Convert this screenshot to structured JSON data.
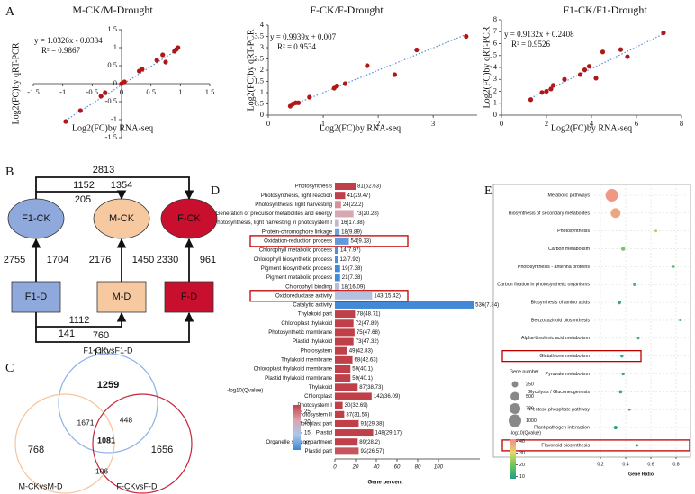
{
  "panel_labels": [
    "A",
    "B",
    "C",
    "D",
    "E"
  ],
  "chart_data": [
    {
      "type": "scatter",
      "title": "M-CK/M-Drought",
      "x_label": "Log2(FC)by RNA-seq",
      "y_label": "Log2(FC)by qRT-PCR",
      "equation": "y = 1.0326x - 0.0384",
      "r_squared": "R² = 0.9867",
      "trendline": {
        "slope": 1.0326,
        "intercept": -0.0384,
        "color": "#5b8bd6"
      },
      "color": "#b01818",
      "axes_cross_at_origin": true,
      "x": [
        -0.95,
        -0.7,
        -0.35,
        -0.28,
        0.0,
        0.05,
        0.3,
        0.35,
        0.6,
        0.7,
        0.75,
        0.9,
        0.93,
        0.96
      ],
      "y": [
        -1.05,
        -0.75,
        -0.35,
        -0.25,
        0.0,
        0.05,
        0.35,
        0.4,
        0.65,
        0.8,
        0.6,
        0.9,
        0.95,
        1.0
      ],
      "xlim": [
        -1.5,
        1.5
      ],
      "ylim": [
        -1.5,
        1.5
      ],
      "xticks": [
        -1.5,
        -1,
        -0.5,
        0,
        0.5,
        1,
        1.5
      ],
      "yticks": [
        -1.5,
        -1,
        -0.5,
        0,
        0.5,
        1,
        1.5
      ]
    },
    {
      "type": "scatter",
      "title": "F-CK/F-Drought",
      "x_label": "Log2(FC)by RNA-seq",
      "y_label": "Log2(FC)by qRT-PCR",
      "equation": "y = 0.9939x + 0.007",
      "r_squared": "R² = 0.9534",
      "trendline": {
        "slope": 0.9939,
        "intercept": 0.007,
        "color": "#5b8bd6"
      },
      "color": "#b01818",
      "axes_cross_at_origin": false,
      "x": [
        0.4,
        0.45,
        0.5,
        0.55,
        0.75,
        1.2,
        1.25,
        1.4,
        1.8,
        2.3,
        2.7,
        3.6
      ],
      "y": [
        0.4,
        0.5,
        0.55,
        0.55,
        0.8,
        1.2,
        1.3,
        1.4,
        2.2,
        1.8,
        2.9,
        3.5
      ],
      "xlim": [
        0,
        3.8
      ],
      "ylim": [
        0,
        4
      ],
      "xticks": [
        0,
        1,
        2,
        3
      ],
      "yticks": [
        0,
        0.5,
        1,
        1.5,
        2,
        2.5,
        3,
        3.5,
        4
      ]
    },
    {
      "type": "scatter",
      "title": "F1-CK/F1-Drought",
      "x_label": "Log2(FC)by RNA-seq",
      "y_label": "Log2(FC)by qRT-PCR",
      "equation": "y = 0.9132x + 0.2408",
      "r_squared": "R² = 0.9526",
      "trendline": {
        "slope": 0.9132,
        "intercept": 0.2408,
        "color": "#5b8bd6"
      },
      "color": "#b01818",
      "axes_cross_at_origin": false,
      "x": [
        1.3,
        1.8,
        2.0,
        2.2,
        2.3,
        2.8,
        3.5,
        3.7,
        3.9,
        4.2,
        4.5,
        5.3,
        5.6,
        7.2
      ],
      "y": [
        1.3,
        1.9,
        2.0,
        2.2,
        2.5,
        3.0,
        3.4,
        3.8,
        4.1,
        3.1,
        5.3,
        5.5,
        4.9,
        6.9
      ],
      "xlim": [
        0,
        8
      ],
      "ylim": [
        0,
        8
      ],
      "xticks": [
        0,
        2,
        4,
        6,
        8
      ],
      "yticks": [
        0,
        1,
        2,
        3,
        4,
        5,
        6,
        7,
        8
      ]
    },
    {
      "type": "bar",
      "orientation": "horizontal",
      "x_label": "Gene percent",
      "categories": [
        "Photosynthesis",
        "Photosynthesis, light reaction",
        "Photosynthesis, light harvesting",
        "Generation of precursor metabolites and energy",
        "Photosynthesis, light harvesting in photosystem I",
        "Protein-chromophore linkage",
        "Oxidation-reduction process",
        "Chlorophyll metabolic process",
        "Chlorophyll biosynthetic process",
        "Pigment biosynthetic process",
        "Pigment metabolic process",
        "Chlorophyll binding",
        "Oxidoreductase activity",
        "Catalytic activity",
        "Thylakoid part",
        "Chloroplast thylakoid",
        "Photosynthetic membrane",
        "Plastid thylakoid",
        "Photosystem",
        "Thylakoid membrane",
        "Chloroplast thylakoid membrane",
        "Plastid thylakoid membrane",
        "Thylakoid",
        "Chloroplast",
        "Photosystem I",
        "Photosystem II",
        "Chloroplast part",
        "Plastid",
        "Organelle subcompartment",
        "Plastid part"
      ],
      "values": [
        20,
        10,
        6,
        18,
        4,
        4.5,
        13.5,
        3.5,
        3,
        5,
        5,
        4.5,
        36,
        134,
        19.5,
        18,
        19,
        18,
        12,
        17,
        15,
        15,
        22,
        35.5,
        7.5,
        9,
        23,
        37,
        22,
        23
      ],
      "bar_labels": [
        "81(52.63)",
        "41(29.47)",
        "24(22.2)",
        "73(20.28)",
        "16(17.38)",
        "18(9.89)",
        "54(9.13)",
        "14(7.97)",
        "12(7.92)",
        "19(7.38)",
        "21(7.38)",
        "18(16.09)",
        "143(15.42)",
        "536(7.34)",
        "78(48.71)",
        "72(47.89)",
        "75(47.68)",
        "73(47.32)",
        "49(42.83)",
        "68(42.63)",
        "59(40.1)",
        "59(40.1)",
        "87(38.73)",
        "142(36.09)",
        "30(32.69)",
        "37(31.55)",
        "91(29.38)",
        "148(29.17)",
        "89(28.2)",
        "92(26.57)"
      ],
      "qvalues": [
        52.63,
        29.47,
        22.2,
        20.28,
        17.38,
        9.89,
        9.13,
        7.97,
        7.92,
        7.38,
        7.38,
        16.09,
        15.42,
        7.34,
        48.71,
        47.89,
        47.68,
        47.32,
        42.83,
        42.63,
        40.1,
        40.1,
        38.73,
        36.09,
        32.69,
        31.55,
        29.38,
        29.17,
        28.2,
        26.57
      ],
      "xlim": [
        0,
        140
      ],
      "xticks": [
        0,
        20,
        40,
        60,
        80,
        100
      ],
      "highlighted": [
        6,
        12
      ],
      "highlight_color": "#c00000",
      "colorbar": {
        "title": "-log10(Qvalue)",
        "lim": [
          7,
          28
        ],
        "ticks": [
          10,
          15,
          20,
          25
        ],
        "colors": [
          "#3d86d6",
          "#aac8ea",
          "#dca3ad",
          "#c0404a"
        ]
      }
    },
    {
      "type": "dot",
      "x_label": "Gene Ratio",
      "categories": [
        "Metabolic pathways",
        "Biosynthesis of secondary metabolites",
        "Photosynthesis",
        "Carbon metabolism",
        "Photosynthesis - antenna proteins",
        "Carbon fixation in photosynthetic organisms",
        "Biosynthesis of amino acids",
        "Benzoxazinoid biosynthesis",
        "Alpha-Linolenic acid metabolism",
        "Glutathione metabolism",
        "Pyruvate metabolism",
        "Glycolysis / Gluconeogenesis",
        "Pentose phosphate pathway",
        "Plant-pathogen interaction",
        "Flavonoid biosynthesis"
      ],
      "x": [
        0.29,
        0.32,
        0.64,
        0.38,
        0.78,
        0.47,
        0.35,
        0.83,
        0.5,
        0.37,
        0.38,
        0.36,
        0.43,
        0.32,
        0.49
      ],
      "sizes": [
        1000,
        600,
        40,
        100,
        35,
        60,
        90,
        20,
        40,
        60,
        55,
        70,
        35,
        90,
        40
      ],
      "qvalues": [
        40,
        38,
        25,
        20,
        16,
        15,
        13,
        13,
        12,
        12,
        11,
        11,
        10,
        9,
        9
      ],
      "xlim": [
        0.15,
        0.9
      ],
      "xticks": [
        0.2,
        0.4,
        0.6,
        0.8
      ],
      "grid": true,
      "highlighted": [
        9,
        14
      ],
      "highlight_color": "#c00000",
      "size_legend": {
        "title": "Gene number",
        "values": [
          250,
          500,
          750,
          1000
        ]
      },
      "colorbar": {
        "title": "-log10(Qvalue)",
        "lim": [
          8,
          42
        ],
        "ticks": [
          10,
          20,
          30,
          40
        ],
        "colors": [
          "#1f9e89",
          "#6cc55a",
          "#e2d86a",
          "#f28b8b"
        ]
      }
    }
  ],
  "diagram": {
    "nodes": [
      {
        "label": "F1-CK",
        "shape": "ellipse",
        "color": "#8fa9dc"
      },
      {
        "label": "M-CK",
        "shape": "ellipse",
        "color": "#f7c9a0"
      },
      {
        "label": "F-CK",
        "shape": "ellipse",
        "color": "#c8102e"
      },
      {
        "label": "F1-D",
        "shape": "rect",
        "color": "#8fa9dc"
      },
      {
        "label": "M-D",
        "shape": "rect",
        "color": "#f7c9a0"
      },
      {
        "label": "F-D",
        "shape": "rect",
        "color": "#c8102e"
      }
    ],
    "count_colors": [
      "#c00000",
      "#7b96d8"
    ],
    "edges": [
      {
        "from": 3,
        "to": 0,
        "counts": [
          2755,
          1704
        ]
      },
      {
        "from": 4,
        "to": 1,
        "counts": [
          2176,
          1450
        ]
      },
      {
        "from": 5,
        "to": 2,
        "counts": [
          2330,
          961
        ]
      },
      {
        "from": 0,
        "to": 1,
        "counts": [
          1152,
          205
        ]
      },
      {
        "from": 0,
        "to": 2,
        "counts": [
          2813,
          1354
        ]
      },
      {
        "from": 3,
        "to": 4,
        "counts": [
          1112,
          141
        ]
      },
      {
        "from": 3,
        "to": 5,
        "counts": [
          760,
          110
        ]
      }
    ]
  },
  "venn": {
    "sets": [
      {
        "label": "F1-CKvsF1-D",
        "color": "#8fb0e8"
      },
      {
        "label": "M-CKvsM-D",
        "color": "#f5c49a"
      },
      {
        "label": "F-CKvsF-D",
        "color": "#c8243a"
      }
    ],
    "regions": [
      1259,
      1671,
      448,
      1081,
      768,
      106,
      1656
    ],
    "emphasized": [
      0,
      3
    ],
    "emphasis_color": "#c00000"
  }
}
